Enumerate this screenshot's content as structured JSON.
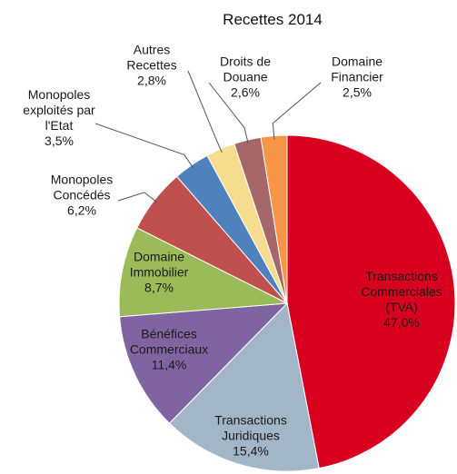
{
  "chart_data": {
    "type": "pie",
    "title": "Recettes 2014",
    "categories": [
      "Transactions\nCommerciales\n(TVA)",
      "Transactions\nJuridiques",
      "Bénéfices\nCommerciaux",
      "Domaine\nImmobilier",
      "Monopoles\nConcédés",
      "Monopoles\nexploités par\nl'Etat",
      "Autres\nRecettes",
      "Droits de\nDouane",
      "Domaine\nFinancier"
    ],
    "values": [
      47.0,
      15.4,
      11.4,
      8.7,
      6.2,
      3.5,
      2.8,
      2.6,
      2.5
    ],
    "value_labels": [
      "47,0%",
      "15,4%",
      "11,4%",
      "8,7%",
      "6,2%",
      "3,5%",
      "2,8%",
      "2,6%",
      "2,5%"
    ],
    "colors": [
      "#d9001f",
      "#a3b6c8",
      "#8064a2",
      "#9bbb59",
      "#c0504d",
      "#4f81bd",
      "#f5dc8e",
      "#a5676a",
      "#f79646"
    ]
  }
}
